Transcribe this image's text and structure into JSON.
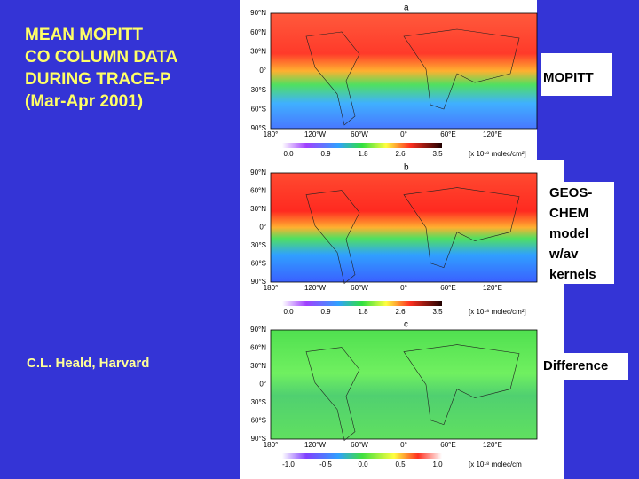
{
  "title": [
    "MEAN MOPITT",
    "CO COLUMN DATA",
    "DURING TRACE-P",
    "(Mar-Apr 2001)"
  ],
  "author": "C.L. Heald, Harvard",
  "panels": [
    {
      "letter": "a",
      "label": [
        "MOPITT"
      ],
      "lat_labels": [
        "90°N",
        "60°N",
        "30°N",
        "0°",
        "30°S",
        "60°S",
        "90°S"
      ],
      "lon_labels": [
        "180°",
        "120°W",
        "60°W",
        "0°",
        "60°E",
        "120°E"
      ],
      "colorbar_ticks": [
        "0.0",
        "0.9",
        "1.8",
        "2.6",
        "3.5"
      ],
      "units": "[x 10¹⁸ molec/cm²]"
    },
    {
      "letter": "b",
      "label": [
        "GEOS-",
        "CHEM",
        "model",
        "w/av",
        "kernels"
      ],
      "lat_labels": [
        "90°N",
        "60°N",
        "30°N",
        "0°",
        "30°S",
        "60°S",
        "90°S"
      ],
      "lon_labels": [
        "180°",
        "120°W",
        "60°W",
        "0°",
        "60°E",
        "120°E"
      ],
      "colorbar_ticks": [
        "0.0",
        "0.9",
        "1.8",
        "2.6",
        "3.5"
      ],
      "units": "[x 10¹⁸ molec/cm²]"
    },
    {
      "letter": "c",
      "label": [
        "Difference"
      ],
      "lat_labels": [
        "90°N",
        "60°N",
        "30°N",
        "0°",
        "30°S",
        "60°S",
        "90°S"
      ],
      "lon_labels": [
        "180°",
        "120°W",
        "60°W",
        "0°",
        "60°E",
        "120°E"
      ],
      "colorbar_ticks": [
        "-1.0",
        "-0.5",
        "0.0",
        "0.5",
        "1.0"
      ],
      "units": "[x 10¹⁸ molec/cm"
    }
  ]
}
